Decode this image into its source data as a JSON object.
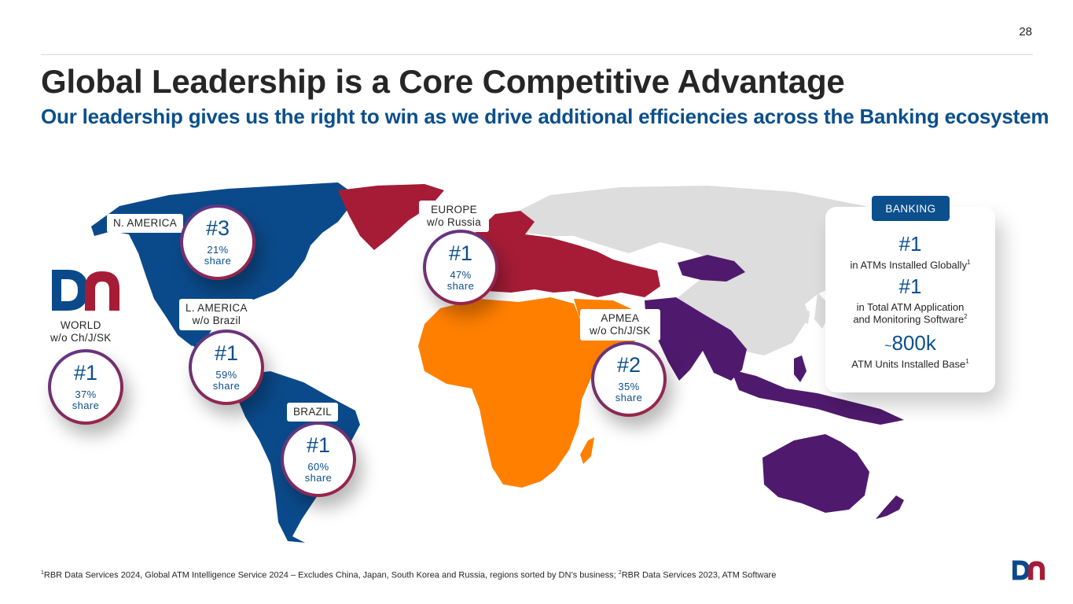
{
  "page_number": "28",
  "title": "Global Leadership is a Core Competitive Advantage",
  "subtitle": "Our leadership gives us the right to win as we drive additional efficiencies across the Banking ecosystem",
  "colors": {
    "brand_blue": "#0b4f8c",
    "north_south_america": "#0b4a8a",
    "europe": "#a61c37",
    "africa_middle_east": "#ff7f00",
    "asia_pacific": "#4f1a6d",
    "excluded_regions": "#dddddd",
    "badge_ring_start": "#5b3a8f",
    "badge_ring_end": "#a81f3b"
  },
  "regions": {
    "world": {
      "label_line1": "WORLD",
      "label_line2": "w/o Ch/J/SK",
      "rank": "#1",
      "pct": "37%",
      "share": "share"
    },
    "north_america": {
      "label": "N. AMERICA",
      "rank": "#3",
      "pct": "21%",
      "share": "share"
    },
    "latin_america": {
      "label_line1": "L. AMERICA",
      "label_line2": "w/o Brazil",
      "rank": "#1",
      "pct": "59%",
      "share": "share"
    },
    "brazil": {
      "label": "BRAZIL",
      "rank": "#1",
      "pct": "60%",
      "share": "share"
    },
    "europe": {
      "label_line1": "EUROPE",
      "label_line2": "w/o Russia",
      "rank": "#1",
      "pct": "47%",
      "share": "share"
    },
    "apmea": {
      "label_line1": "APMEA",
      "label_line2": "w/o Ch/J/SK",
      "rank": "#2",
      "pct": "35%",
      "share": "share"
    }
  },
  "banking": {
    "tag": "BANKING",
    "stats": [
      {
        "value": "#1",
        "label": "in ATMs Installed Globally",
        "sup": "1"
      },
      {
        "value": "#1",
        "label_line1": "in Total ATM Application",
        "label_line2": "and Monitoring Software",
        "sup": "2"
      },
      {
        "prefix": "~",
        "value": "800k",
        "label": "ATM Units Installed Base",
        "sup": "1"
      }
    ]
  },
  "footnote": {
    "sup1": "1",
    "part1": "RBR Data Services 2024, Global ATM Intelligence Service 2024 – Excludes China, Japan, South Korea and Russia, regions sorted by DN’s business; ",
    "sup2": "2",
    "part2": "RBR Data Services 2023, ATM Software"
  },
  "icons": {
    "logo": "dn-logo-icon",
    "world_map": "world-map-icon"
  }
}
